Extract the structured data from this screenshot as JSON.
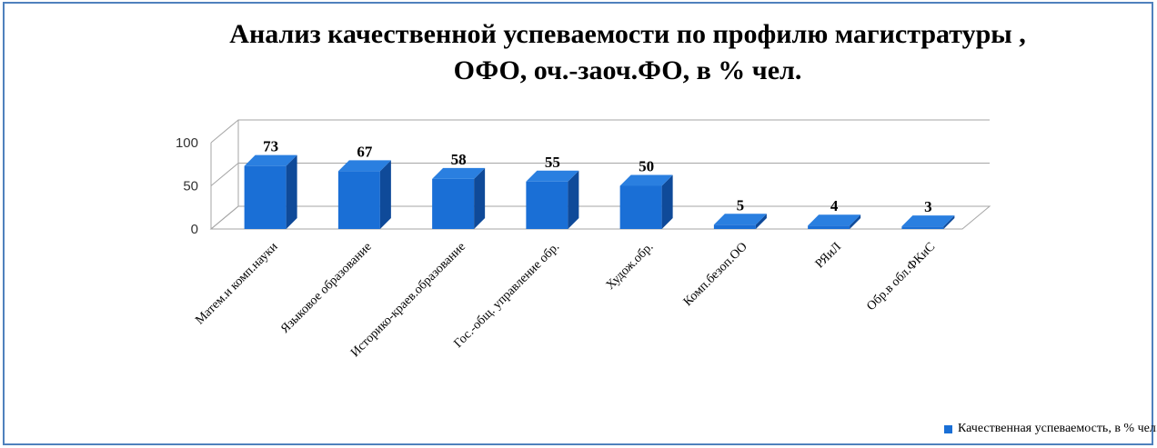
{
  "chart_data": {
    "type": "bar",
    "title": "Анализ качественной  успеваемости по профилю магистратуры , ОФО, оч.-заоч.ФО, в %  чел.",
    "title_lines": [
      "Анализ качественной  успеваемости по профилю магистратуры ,",
      "ОФО, оч.-заоч.ФО, в %  чел."
    ],
    "categories": [
      "Матем.и комп.науки",
      "Языковое образование",
      "Историко-краев.образование",
      "Гос.-общ. управление обр.",
      "Худож.обр.",
      "Комп.безоп.ОО",
      "РЯиЛ",
      "Обр.в обл.ФКиС"
    ],
    "series": [
      {
        "name": "Качественная  успеваемость, в % чел.",
        "values": [
          73,
          67,
          58,
          55,
          50,
          5,
          4,
          3
        ]
      }
    ],
    "ylim": [
      0,
      100
    ],
    "yticks": [
      0,
      50,
      100
    ],
    "grid": true,
    "legend_position": "bottom-right",
    "style": "3d-column"
  },
  "colors": {
    "bar_front": "#1a6fd6",
    "bar_side": "#0f4a99",
    "bar_top": "#2a7fe0",
    "frame_border": "#4f81bd",
    "grid": "#a6a6a6"
  }
}
